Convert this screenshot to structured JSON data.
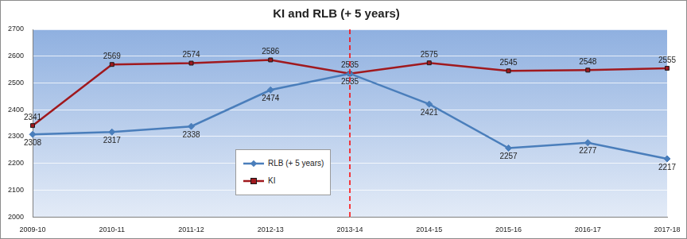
{
  "chart_data": {
    "type": "line",
    "title": "KI and RLB (+ 5 years)",
    "categories": [
      "2009-10",
      "2010-11",
      "2011-12",
      "2012-13",
      "2013-14",
      "2014-15",
      "2015-16",
      "2016-17",
      "2017-18"
    ],
    "series": [
      {
        "name": "RLB (+ 5 years)",
        "color": "#4a7ebb",
        "marker": "diamond",
        "values": [
          2308,
          2317,
          2338,
          2474,
          2535,
          2421,
          2257,
          2277,
          2217
        ]
      },
      {
        "name": "KI",
        "color": "#a0191e",
        "marker": "square",
        "values": [
          2341,
          2569,
          2574,
          2586,
          2535,
          2575,
          2545,
          2548,
          2555
        ]
      }
    ],
    "ylim": [
      2000,
      2700
    ],
    "yticks": [
      2000,
      2100,
      2200,
      2300,
      2400,
      2500,
      2600,
      2700
    ],
    "grid": true,
    "legend": "center",
    "data_labels": true,
    "reference_line": {
      "x": "2013-14",
      "color": "#ff0000",
      "line_style": "dashed"
    }
  }
}
